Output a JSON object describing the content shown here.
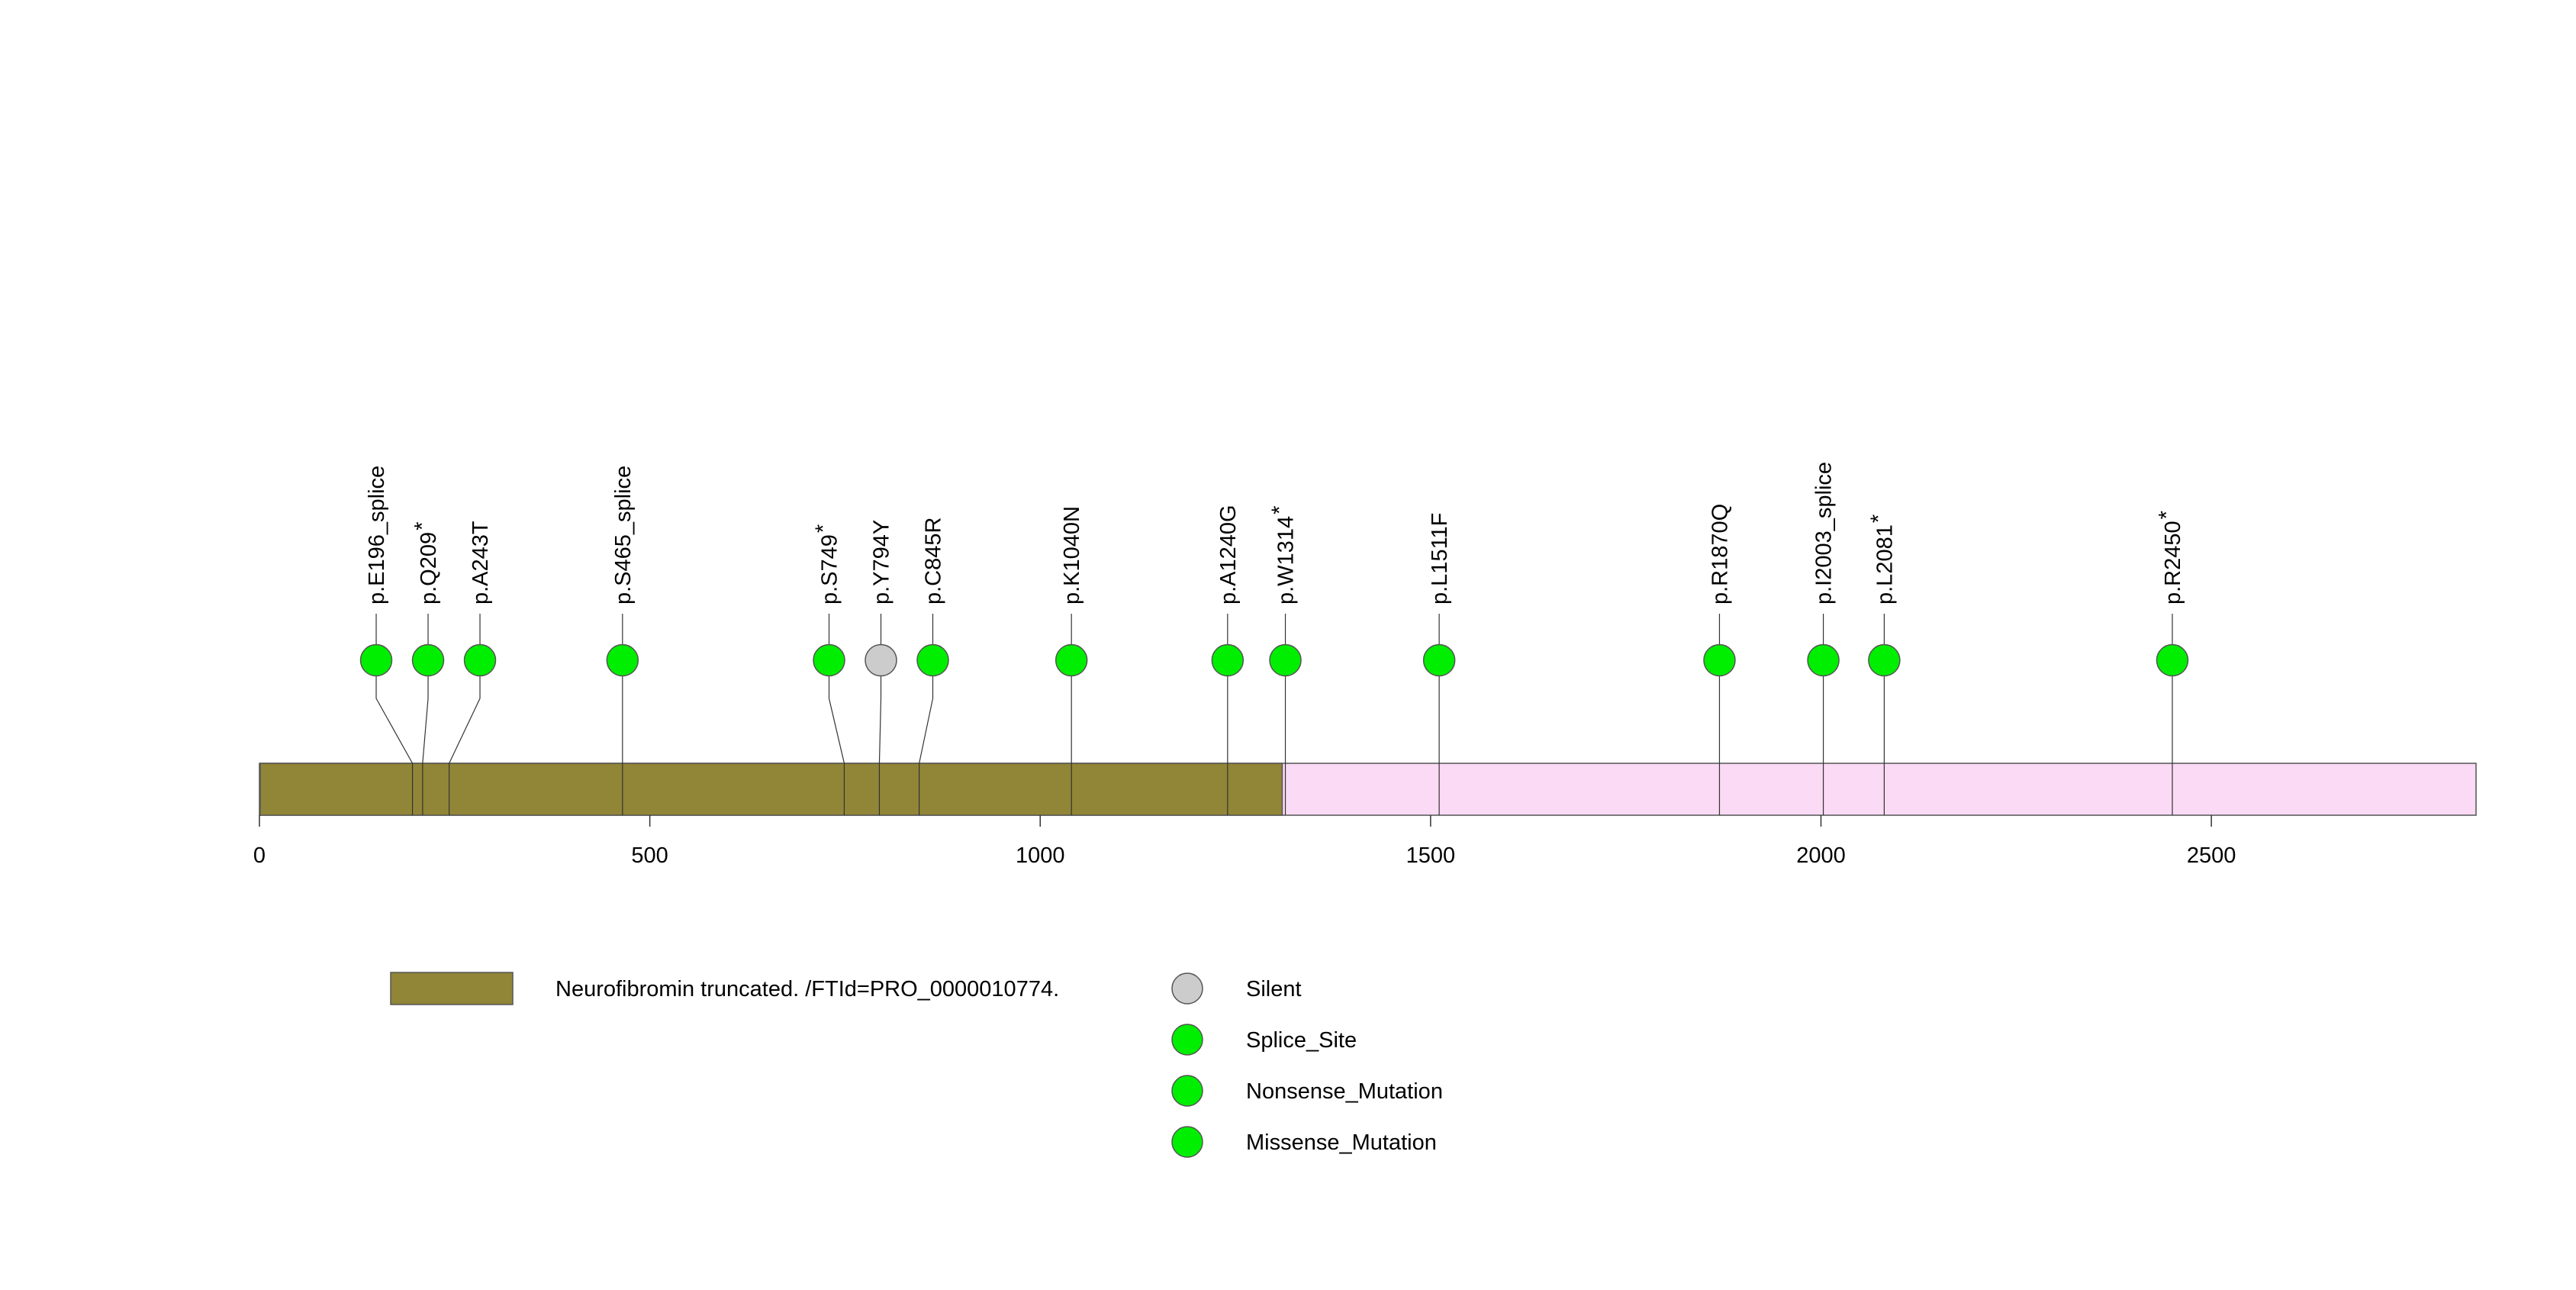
{
  "colors": {
    "domain": "#918537",
    "protein": "#fadaf5",
    "outline": "#555555",
    "silent": "#cccccc",
    "mutation": "#00ee00"
  },
  "chart_data": {
    "type": "lollipop",
    "title": "",
    "xlabel": "",
    "ylabel": "",
    "protein_length": 2839,
    "xlim": [
      0,
      2839
    ],
    "xticks": [
      0,
      500,
      1000,
      1500,
      2000,
      2500
    ],
    "domains": [
      {
        "start": 1,
        "end": 1310,
        "label": "Neurofibromin truncated. /FTId=PRO_0000010774."
      }
    ],
    "mutations": [
      {
        "position": 196,
        "name": "p.E196_splice",
        "label": "p.E196_splice",
        "nonsense": false,
        "type": "Splice_Site"
      },
      {
        "position": 209,
        "name": "p.Q209*",
        "label": "p.Q209",
        "nonsense": true,
        "type": "Nonsense_Mutation"
      },
      {
        "position": 243,
        "name": "p.A243T",
        "label": "p.A243T",
        "nonsense": false,
        "type": "Missense_Mutation"
      },
      {
        "position": 465,
        "name": "p.S465_splice",
        "label": "p.S465_splice",
        "nonsense": false,
        "type": "Splice_Site"
      },
      {
        "position": 749,
        "name": "p.S749*",
        "label": "p.S749",
        "nonsense": true,
        "type": "Nonsense_Mutation"
      },
      {
        "position": 794,
        "name": "p.Y794Y",
        "label": "p.Y794Y",
        "nonsense": false,
        "type": "Silent"
      },
      {
        "position": 845,
        "name": "p.C845R",
        "label": "p.C845R",
        "nonsense": false,
        "type": "Missense_Mutation"
      },
      {
        "position": 1040,
        "name": "p.K1040N",
        "label": "p.K1040N",
        "nonsense": false,
        "type": "Missense_Mutation"
      },
      {
        "position": 1240,
        "name": "p.A1240G",
        "label": "p.A1240G",
        "nonsense": false,
        "type": "Missense_Mutation"
      },
      {
        "position": 1314,
        "name": "p.W1314*",
        "label": "p.W1314",
        "nonsense": true,
        "type": "Nonsense_Mutation"
      },
      {
        "position": 1511,
        "name": "p.L1511F",
        "label": "p.L1511F",
        "nonsense": false,
        "type": "Missense_Mutation"
      },
      {
        "position": 1870,
        "name": "p.R1870Q",
        "label": "p.R1870Q",
        "nonsense": false,
        "type": "Missense_Mutation"
      },
      {
        "position": 2003,
        "name": "p.I2003_splice",
        "label": "p.I2003_splice",
        "nonsense": false,
        "type": "Splice_Site"
      },
      {
        "position": 2081,
        "name": "p.L2081*",
        "label": "p.L2081",
        "nonsense": true,
        "type": "Nonsense_Mutation"
      },
      {
        "position": 2450,
        "name": "p.R2450*",
        "label": "p.R2450",
        "nonsense": true,
        "type": "Nonsense_Mutation"
      }
    ],
    "legend": {
      "domain_label": "Neurofibromin truncated. /FTId=PRO_0000010774.",
      "items": [
        {
          "label": "Silent",
          "color": "#cccccc"
        },
        {
          "label": "Splice_Site",
          "color": "#00ee00"
        },
        {
          "label": "Nonsense_Mutation",
          "color": "#00ee00"
        },
        {
          "label": "Missense_Mutation",
          "color": "#00ee00"
        }
      ]
    }
  }
}
